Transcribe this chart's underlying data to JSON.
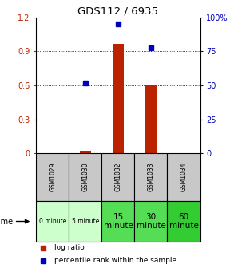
{
  "title": "GDS112 / 6935",
  "samples": [
    "GSM1029",
    "GSM1030",
    "GSM1032",
    "GSM1033",
    "GSM1034"
  ],
  "time_labels": [
    "0 minute",
    "5 minute",
    "15\nminute",
    "30\nminute",
    "60\nminute"
  ],
  "time_colors": [
    "#ccffcc",
    "#ccffcc",
    "#55dd55",
    "#55dd55",
    "#33cc33"
  ],
  "log_ratio": [
    0.0,
    0.02,
    0.97,
    0.6,
    0.0
  ],
  "percentile_rank_left_scale": [
    null,
    0.62,
    1.14,
    0.93,
    null
  ],
  "ylim_left": [
    0,
    1.2
  ],
  "ylim_right": [
    0,
    100
  ],
  "yticks_left": [
    0,
    0.3,
    0.6,
    0.9,
    1.2
  ],
  "ytick_labels_left": [
    "0",
    "0.3",
    "0.6",
    "0.9",
    "1.2"
  ],
  "yticks_right": [
    0,
    25,
    50,
    75,
    100
  ],
  "ytick_labels_right": [
    "0",
    "25",
    "50",
    "75",
    "100%"
  ],
  "bar_color": "#bb2200",
  "dot_color": "#0000bb",
  "bar_width": 0.35,
  "background_color": "#ffffff",
  "sample_cell_color": "#c8c8c8",
  "legend_log_ratio": "log ratio",
  "legend_percentile": "percentile rank within the sample",
  "time_label": "time"
}
